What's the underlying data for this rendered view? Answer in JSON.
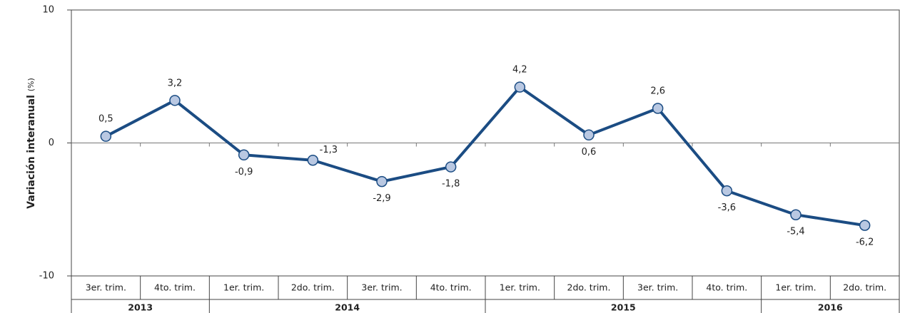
{
  "chart_data": {
    "type": "line",
    "y_label": "Variación interanual",
    "y_label_unit": "(%)",
    "categories": [
      "3er. trim.",
      "4to. trim.",
      "1er. trim.",
      "2do. trim.",
      "3er. trim.",
      "4to. trim.",
      "1er. trim.",
      "2do. trim.",
      "3er. trim.",
      "4to. trim.",
      "1er. trim.",
      "2do. trim."
    ],
    "category_years": [
      "2013",
      "2013",
      "2014",
      "2014",
      "2014",
      "2014",
      "2015",
      "2015",
      "2015",
      "2015",
      "2016",
      "2016"
    ],
    "series": [
      {
        "color": "#1b4c83",
        "values": [
          0.5,
          3.2,
          -0.9,
          -1.3,
          -2.9,
          -1.8,
          4.2,
          0.6,
          2.6,
          -3.6,
          -5.4,
          -6.2
        ],
        "value_labels": [
          "0,5",
          "3,2",
          "-0,9",
          "-1,3",
          "-2,9",
          "-1,8",
          "4,2",
          "0,6",
          "2,6",
          "-3,6",
          "-5,4",
          "-6,2"
        ]
      }
    ],
    "marker_color": "#b9c8e2",
    "ylim": [
      -10,
      10
    ],
    "yticks": [
      -10,
      0,
      10
    ]
  }
}
